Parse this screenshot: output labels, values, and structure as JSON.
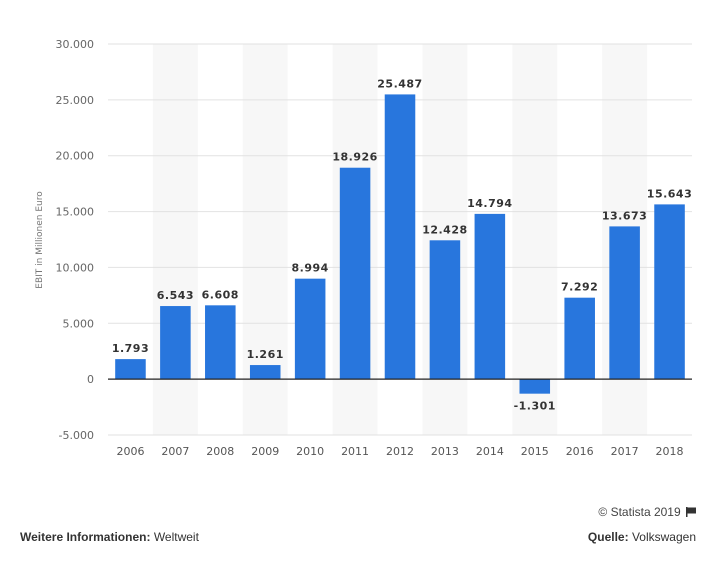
{
  "chart_data": {
    "type": "bar",
    "title": "",
    "xlabel": "",
    "ylabel": "EBIT in Millionen Euro",
    "categories": [
      "2006",
      "2007",
      "2008",
      "2009",
      "2010",
      "2011",
      "2012",
      "2013",
      "2014",
      "2015",
      "2016",
      "2017",
      "2018"
    ],
    "values": [
      1793,
      6543,
      6608,
      1261,
      8994,
      18926,
      25487,
      12428,
      14794,
      -1301,
      7292,
      13673,
      15643
    ],
    "value_labels": [
      "1.793",
      "6.543",
      "6.608",
      "1.261",
      "8.994",
      "18.926",
      "25.487",
      "12.428",
      "14.794",
      "-1.301",
      "7.292",
      "13.673",
      "15.643"
    ],
    "ylim": [
      -5000,
      30000
    ],
    "yticks": [
      30000,
      25000,
      20000,
      15000,
      10000,
      5000,
      0,
      -5000
    ],
    "ytick_labels": [
      "30.000",
      "25.000",
      "20.000",
      "15.000",
      "10.000",
      "5.000",
      "0",
      "-5.000"
    ],
    "grid": true,
    "legend": "none",
    "bar_color": "#2876dd"
  },
  "footer": {
    "copyright": "© Statista 2019",
    "more_info_label": "Weitere Informationen:",
    "more_info_value": "Weltweit",
    "source_label": "Quelle:",
    "source_value": "Volkswagen"
  }
}
